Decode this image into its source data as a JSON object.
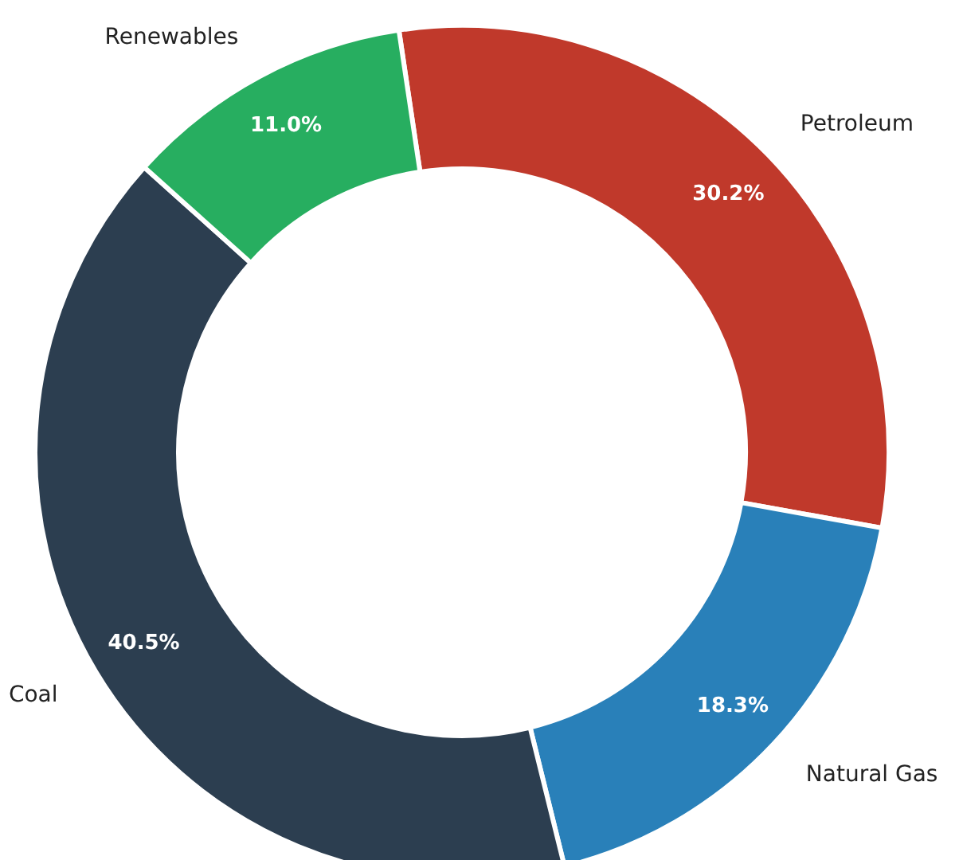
{
  "chart_data": {
    "type": "donut",
    "categories": [
      "Petroleum",
      "Natural Gas",
      "Coal",
      "Renewables"
    ],
    "values": [
      30.2,
      18.3,
      40.5,
      11.0
    ],
    "colors": [
      "#c0392b",
      "#2980b9",
      "#2c3e50",
      "#27ae60"
    ],
    "value_labels": [
      "30.2%",
      "18.3%",
      "40.5%",
      "11.0%"
    ]
  }
}
